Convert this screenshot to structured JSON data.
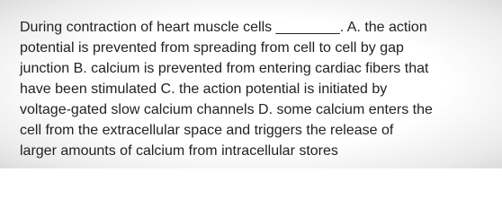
{
  "question": {
    "lines": [
      "During contraction of heart muscle cells ________. A. the action",
      "potential is prevented from spreading from cell to cell by gap",
      "junction B. calcium is prevented from entering cardiac fibers that",
      "have been stimulated C. the action potential is initiated by",
      "voltage-gated slow calcium channels D. some calcium enters the",
      "cell from the extracellular space and triggers the release of",
      "larger amounts of calcium from intracellular stores"
    ]
  }
}
